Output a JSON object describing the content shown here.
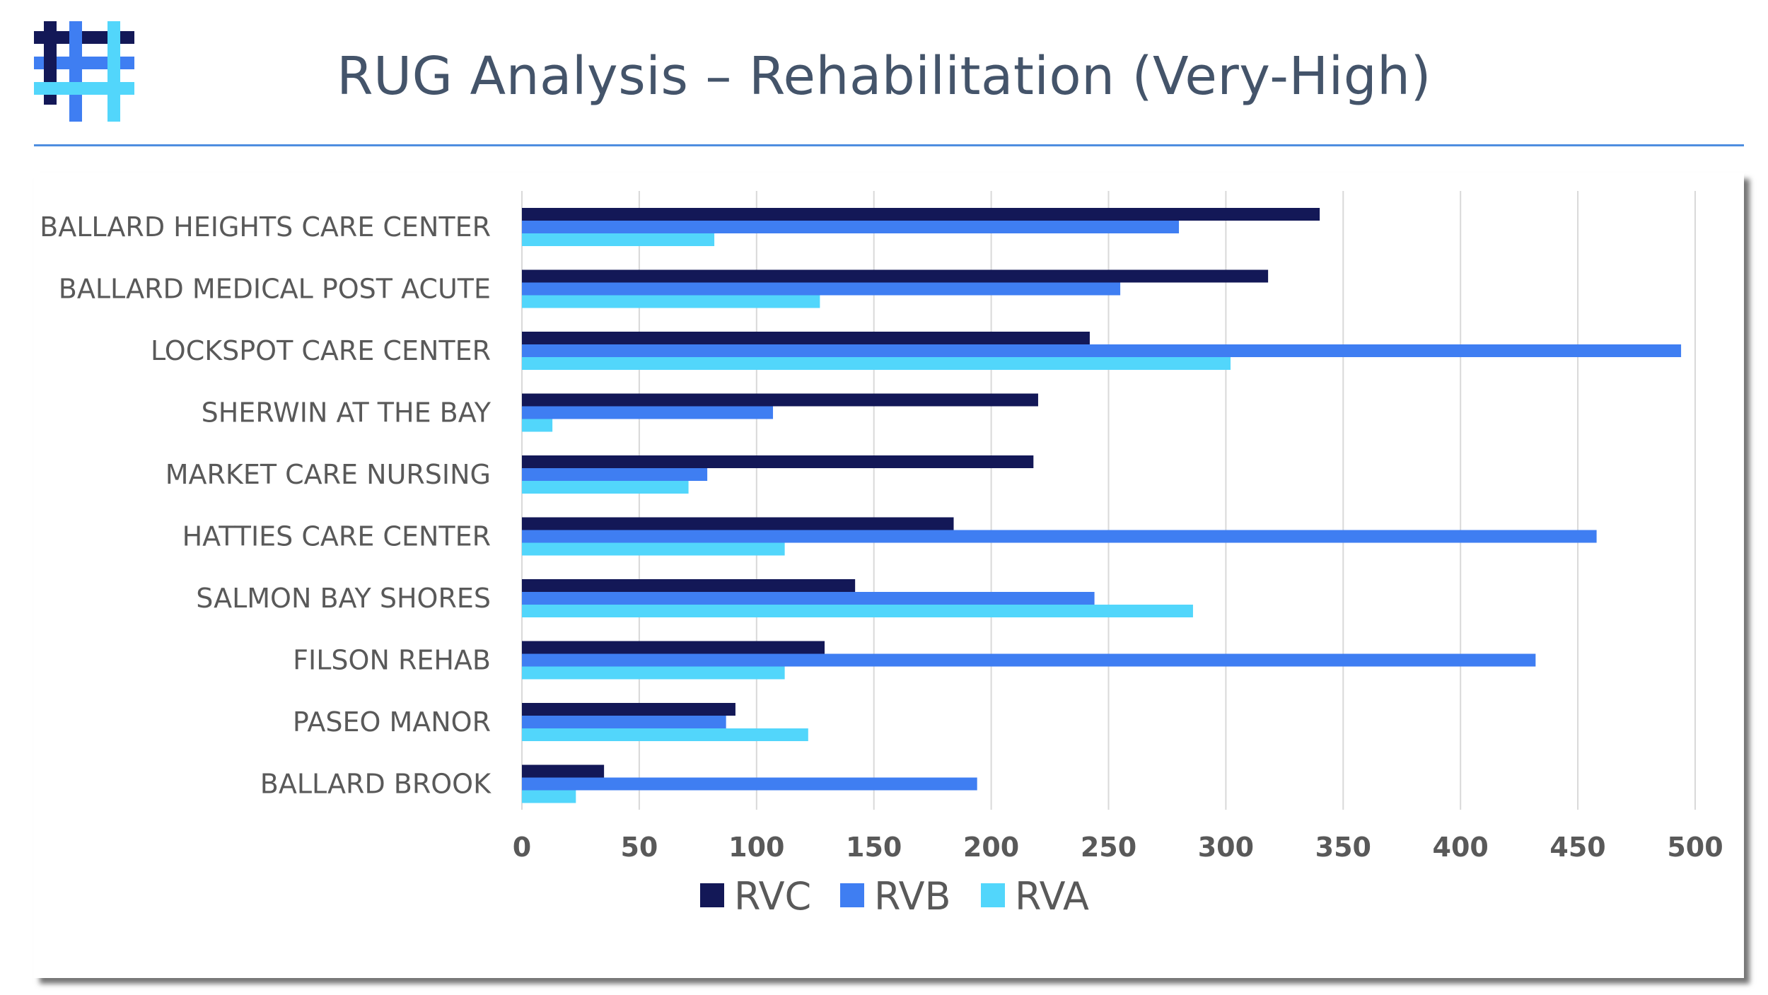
{
  "title": "RUG Analysis – Rehabilitation (Very-High)",
  "logo": {
    "icon": "hashtag-logo-icon",
    "colors": [
      "#131857",
      "#3f7ef2",
      "#52d6fb"
    ]
  },
  "colors": {
    "title": "#44546a",
    "rule": "#4e8ee0",
    "label": "#595959",
    "grid": "#d9d9d9"
  },
  "chart_data": {
    "type": "bar",
    "orientation": "horizontal",
    "title": "",
    "xlabel": "",
    "ylabel": "",
    "categories": [
      "BALLARD HEIGHTS CARE CENTER",
      "BALLARD MEDICAL POST ACUTE",
      "LOCKSPOT CARE CENTER",
      "SHERWIN AT THE BAY",
      "MARKET CARE NURSING",
      "HATTIES CARE CENTER",
      "SALMON BAY SHORES",
      "FILSON REHAB",
      "PASEO MANOR",
      "BALLARD BROOK"
    ],
    "series": [
      {
        "name": "RVC",
        "color": "#131857",
        "values": [
          340,
          318,
          242,
          220,
          218,
          184,
          142,
          129,
          91,
          35
        ]
      },
      {
        "name": "RVB",
        "color": "#3f7ef2",
        "values": [
          280,
          255,
          494,
          107,
          79,
          458,
          244,
          432,
          87,
          194
        ]
      },
      {
        "name": "RVA",
        "color": "#52d6fb",
        "values": [
          82,
          127,
          302,
          13,
          71,
          112,
          286,
          112,
          122,
          23
        ]
      }
    ],
    "xlim": [
      0,
      500
    ],
    "xticks": [
      0,
      50,
      100,
      150,
      200,
      250,
      300,
      350,
      400,
      450,
      500
    ],
    "grid": "vertical",
    "legend": "bottom-center"
  }
}
